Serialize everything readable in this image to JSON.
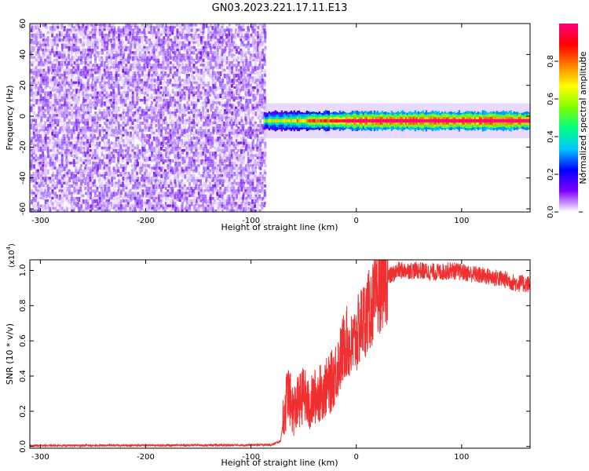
{
  "title": "GN03.2023.221.17.11.E13",
  "chart_data": [
    {
      "type": "heatmap",
      "xlabel": "Height of straight line (km)",
      "ylabel": "Frequency (Hz)",
      "xlim": [
        -310,
        165
      ],
      "ylim": [
        -62,
        60
      ],
      "xticks": [
        "-300",
        "-200",
        "-100",
        "0",
        "100"
      ],
      "xtick_values": [
        -300,
        -200,
        -100,
        0,
        100
      ],
      "yticks": [
        "-60",
        "-40",
        "-20",
        "0",
        "20",
        "40",
        "60"
      ],
      "ytick_values": [
        -60,
        -40,
        -20,
        0,
        20,
        40,
        60
      ],
      "noise_region": {
        "x_from": -310,
        "x_to": -88,
        "level": "0.0-0.3"
      },
      "signal_band": {
        "x_from": -88,
        "x_to": 165,
        "center_hz": -3,
        "width_hz": 6,
        "level": "0.2-1.0"
      },
      "colorbar": {
        "label": "Normalized spectral amplitude",
        "ticks": [
          "0.0",
          "0.2",
          "0.4",
          "0.6",
          "0.8"
        ],
        "tick_values": [
          0.0,
          0.2,
          0.4,
          0.6,
          0.8
        ],
        "range": [
          0,
          1
        ],
        "colormap": [
          "#ffffff",
          "#8000ff",
          "#0000ff",
          "#00c8ff",
          "#00ff80",
          "#80ff00",
          "#ffff00",
          "#ff8000",
          "#ff0000",
          "#ff0080"
        ]
      }
    },
    {
      "type": "line",
      "xlabel": "Height of straight line (km)",
      "ylabel": "SNR (10 * v/v)",
      "multiplier": "(x10",
      "multiplier_exp": "4",
      "xlim": [
        -310,
        165
      ],
      "ylim": [
        -0.01,
        1.06
      ],
      "xticks": [
        "-300",
        "-200",
        "-100",
        "0",
        "100"
      ],
      "xtick_values": [
        -300,
        -200,
        -100,
        0,
        100
      ],
      "yticks": [
        "0.0",
        "0.2",
        "0.4",
        "0.6",
        "0.8",
        "1.0"
      ],
      "ytick_values": [
        0.0,
        0.2,
        0.4,
        0.6,
        0.8,
        1.0
      ],
      "series": [
        {
          "color": "#f03030",
          "x": [
            -310,
            -280,
            -250,
            -220,
            -190,
            -160,
            -130,
            -100,
            -80,
            -72,
            -68,
            -65,
            -60,
            -55,
            -50,
            -45,
            -40,
            -35,
            -30,
            -25,
            -20,
            -15,
            -10,
            -5,
            0,
            5,
            10,
            15,
            20,
            25,
            30,
            35,
            40,
            50,
            60,
            70,
            80,
            90,
            100,
            110,
            120,
            130,
            140,
            150,
            165
          ],
          "y": [
            0.005,
            0.005,
            0.006,
            0.006,
            0.006,
            0.007,
            0.007,
            0.008,
            0.01,
            0.03,
            0.2,
            0.32,
            0.2,
            0.25,
            0.3,
            0.22,
            0.28,
            0.3,
            0.33,
            0.35,
            0.42,
            0.5,
            0.6,
            0.55,
            0.62,
            0.7,
            0.75,
            0.8,
            0.87,
            0.92,
            0.96,
            0.98,
            1.0,
            1.0,
            1.0,
            0.99,
            0.99,
            1.0,
            0.99,
            0.98,
            0.97,
            0.96,
            0.95,
            0.93,
            0.92
          ]
        }
      ]
    }
  ]
}
